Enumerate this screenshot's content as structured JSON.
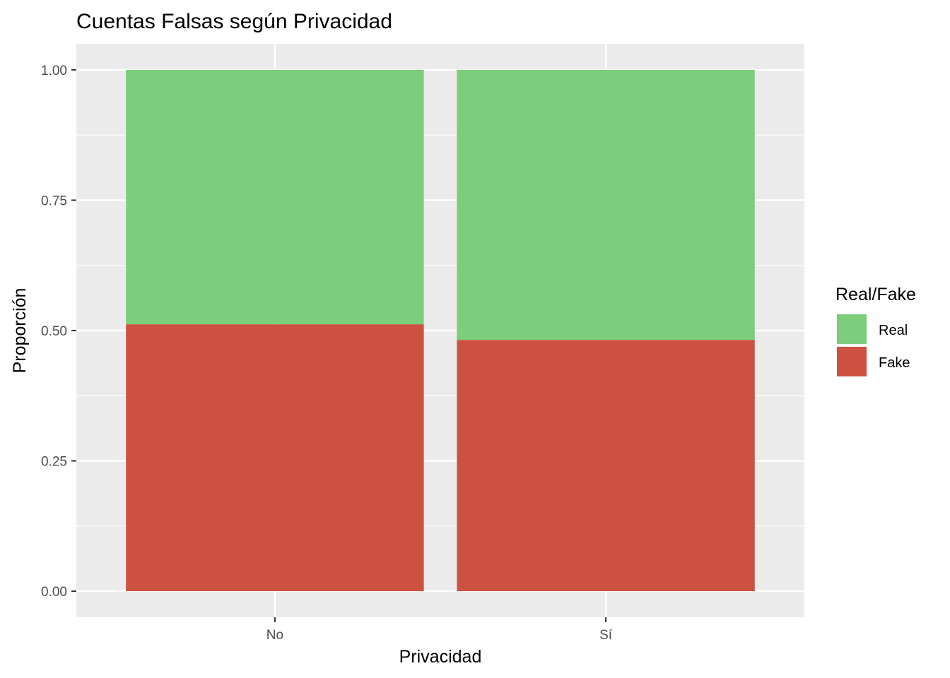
{
  "chart_data": {
    "type": "bar",
    "stacked": true,
    "title": "Cuentas Falsas según Privacidad",
    "xlabel": "Privacidad",
    "ylabel": "Proporción",
    "categories": [
      "No",
      "Sí"
    ],
    "series": [
      {
        "name": "Fake",
        "values": [
          0.512,
          0.482
        ],
        "color": "#CD5140"
      },
      {
        "name": "Real",
        "values": [
          0.488,
          0.518
        ],
        "color": "#7CCD7C"
      }
    ],
    "ylim": [
      -0.05,
      1.05
    ],
    "yticks": [
      "0.00",
      "0.25",
      "0.50",
      "0.75",
      "1.00"
    ],
    "grid": true,
    "legend": {
      "title": "Real/Fake",
      "position": "right",
      "items": [
        {
          "label": "Real",
          "color": "#7CCD7C"
        },
        {
          "label": "Fake",
          "color": "#CD5140"
        }
      ]
    }
  }
}
